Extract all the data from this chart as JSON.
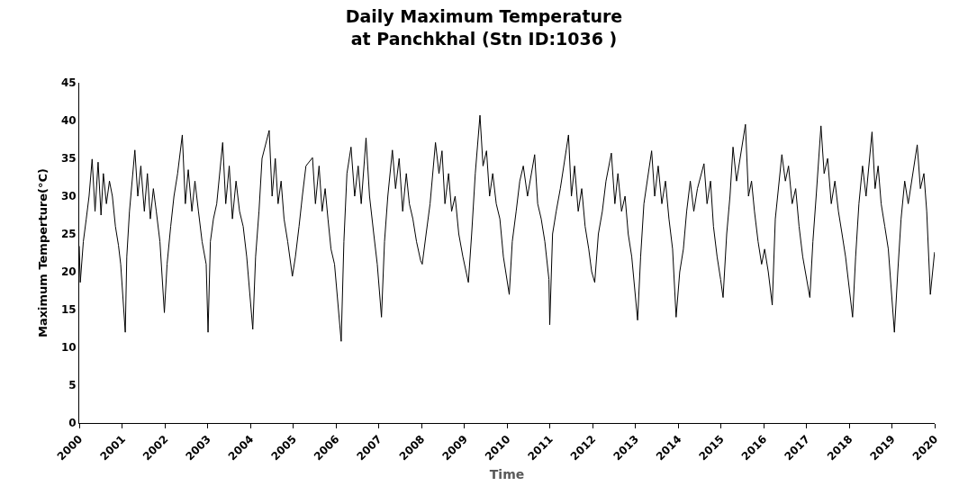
{
  "chart_data": {
    "type": "line",
    "title": "Daily Maximum Temperature\nat Panchkhal (Stn ID:1036 )",
    "xlabel": "Time",
    "ylabel": "Maximum Temperture(°C)",
    "xlim": [
      "2000-01-01",
      "2020-01-01"
    ],
    "xticks": [
      "2000",
      "2001",
      "2002",
      "2003",
      "2004",
      "2005",
      "2006",
      "2007",
      "2008",
      "2009",
      "2010",
      "2011",
      "2012",
      "2013",
      "2014",
      "2015",
      "2016",
      "2017",
      "2018",
      "2019",
      "2020"
    ],
    "ylim": [
      0,
      45
    ],
    "yticks": [
      0,
      5,
      10,
      15,
      20,
      25,
      30,
      35,
      40,
      45
    ],
    "marker": "none",
    "line_style": "solid",
    "series": [
      {
        "color": "#000000",
        "x": [
          "2000-01-01",
          "2000-01-10",
          "2000-02-05",
          "2000-03-01",
          "2000-03-25",
          "2000-04-20",
          "2000-05-15",
          "2000-06-10",
          "2000-07-05",
          "2000-07-25",
          "2000-08-20",
          "2000-09-15",
          "2000-10-10",
          "2000-11-05",
          "2000-12-01",
          "2000-12-20",
          "2001-01-28",
          "2001-02-10",
          "2001-03-05",
          "2001-04-20",
          "2001-05-15",
          "2001-06-10",
          "2001-07-10",
          "2001-08-05",
          "2001-08-30",
          "2001-09-25",
          "2001-10-20",
          "2001-11-20",
          "2001-12-28",
          "2002-01-20",
          "2002-02-20",
          "2002-03-20",
          "2002-04-20",
          "2002-05-30",
          "2002-06-25",
          "2002-07-20",
          "2002-08-20",
          "2002-09-15",
          "2002-10-15",
          "2002-11-15",
          "2002-12-20",
          "2003-01-05",
          "2003-01-25",
          "2003-02-20",
          "2003-03-20",
          "2003-05-10",
          "2003-06-05",
          "2003-07-05",
          "2003-08-01",
          "2003-09-01",
          "2003-10-01",
          "2003-11-01",
          "2003-12-01",
          "2004-01-22",
          "2004-02-15",
          "2004-03-15",
          "2004-04-10",
          "2004-06-10",
          "2004-07-05",
          "2004-08-01",
          "2004-08-25",
          "2004-09-20",
          "2004-10-15",
          "2004-11-15",
          "2004-12-25",
          "2005-01-20",
          "2005-02-20",
          "2005-03-20",
          "2005-04-20",
          "2005-06-15",
          "2005-07-10",
          "2005-08-10",
          "2005-09-05",
          "2005-10-01",
          "2005-10-25",
          "2005-11-20",
          "2005-12-20",
          "2006-02-15",
          "2006-03-10",
          "2006-04-05",
          "2006-05-10",
          "2006-06-10",
          "2006-07-10",
          "2006-08-05",
          "2006-09-15",
          "2006-10-15",
          "2006-11-20",
          "2006-12-20",
          "2007-01-25",
          "2007-02-20",
          "2007-03-20",
          "2007-04-28",
          "2007-05-25",
          "2007-06-25",
          "2007-07-25",
          "2007-08-25",
          "2007-09-20",
          "2007-10-20",
          "2007-11-20",
          "2007-12-25",
          "2008-01-08",
          "2008-02-10",
          "2008-03-15",
          "2008-04-30",
          "2008-05-30",
          "2008-06-25",
          "2008-07-20",
          "2008-08-20",
          "2008-09-15",
          "2008-10-15",
          "2008-11-15",
          "2008-12-20",
          "2009-02-05",
          "2009-03-05",
          "2009-04-05",
          "2009-05-15",
          "2009-06-10",
          "2009-07-10",
          "2009-08-05",
          "2009-09-01",
          "2009-10-01",
          "2009-11-01",
          "2009-12-01",
          "2010-01-20",
          "2010-02-15",
          "2010-03-20",
          "2010-04-20",
          "2010-05-20",
          "2010-06-25",
          "2010-08-25",
          "2010-09-20",
          "2010-10-20",
          "2010-11-20",
          "2010-12-25",
          "2011-01-01",
          "2011-01-25",
          "2011-02-25",
          "2011-04-01",
          "2011-06-10",
          "2011-07-05",
          "2011-08-01",
          "2011-09-01",
          "2011-10-01",
          "2011-10-30",
          "2011-11-30",
          "2011-12-25",
          "2012-01-20",
          "2012-02-20",
          "2012-03-25",
          "2012-04-25",
          "2012-06-10",
          "2012-07-10",
          "2012-08-05",
          "2012-09-05",
          "2012-10-05",
          "2012-11-01",
          "2012-12-01",
          "2013-01-20",
          "2013-02-15",
          "2013-03-15",
          "2013-05-20",
          "2013-06-15",
          "2013-07-15",
          "2013-08-15",
          "2013-09-15",
          "2013-10-15",
          "2013-11-15",
          "2013-12-15",
          "2014-01-15",
          "2014-02-15",
          "2014-03-15",
          "2014-04-15",
          "2014-05-15",
          "2014-06-15",
          "2014-08-10",
          "2014-09-05",
          "2014-10-05",
          "2014-10-30",
          "2014-11-30",
          "2014-12-30",
          "2015-01-20",
          "2015-02-20",
          "2015-03-20",
          "2015-04-15",
          "2015-05-15",
          "2015-07-30",
          "2015-08-25",
          "2015-09-20",
          "2015-10-15",
          "2015-11-15",
          "2015-12-15",
          "2016-01-10",
          "2016-02-10",
          "2016-03-15",
          "2016-04-10",
          "2016-06-05",
          "2016-07-05",
          "2016-08-01",
          "2016-09-01",
          "2016-10-01",
          "2016-10-30",
          "2016-11-30",
          "2017-01-30",
          "2017-02-25",
          "2017-03-25",
          "2017-05-05",
          "2017-06-01",
          "2017-07-01",
          "2017-08-01",
          "2017-09-01",
          "2017-10-01",
          "2017-11-01",
          "2017-12-01",
          "2018-01-30",
          "2018-02-25",
          "2018-03-25",
          "2018-04-25",
          "2018-05-25",
          "2018-07-15",
          "2018-08-10",
          "2018-09-05",
          "2018-10-01",
          "2018-11-01",
          "2018-12-01",
          "2019-01-22",
          "2019-02-20",
          "2019-03-20",
          "2019-04-20",
          "2019-05-20",
          "2019-08-05",
          "2019-09-01",
          "2019-10-01",
          "2019-10-25",
          "2019-11-25",
          "2019-12-31"
        ],
        "values": [
          23.4,
          18.6,
          24,
          27,
          30,
          34.9,
          28,
          34.5,
          27.5,
          33,
          29,
          32,
          30,
          26,
          23.5,
          21,
          12.0,
          22,
          28,
          36.1,
          30,
          34,
          28,
          33,
          27,
          31,
          28,
          24,
          14.6,
          21,
          26,
          30,
          33,
          38.1,
          29,
          33.5,
          28,
          32,
          28,
          24,
          21,
          12.0,
          24,
          27,
          29,
          37.1,
          29,
          34,
          27,
          32,
          28,
          26,
          22,
          12.4,
          22,
          28,
          35,
          38.7,
          30,
          35,
          29,
          32,
          27,
          24,
          19.4,
          22,
          26,
          30,
          34,
          35.1,
          29,
          34,
          28,
          31,
          27,
          23,
          21,
          10.8,
          24,
          33,
          36.5,
          30,
          34,
          29,
          37.7,
          30,
          25,
          21,
          14.0,
          24,
          30,
          36.1,
          31,
          35,
          28,
          33,
          29,
          27,
          24,
          21.5,
          21.0,
          25,
          29,
          37.1,
          33,
          36,
          29,
          33,
          28,
          30,
          25,
          22,
          18.6,
          25,
          33,
          40.7,
          34,
          36,
          30,
          33,
          29,
          27,
          22,
          17.0,
          24,
          28,
          32,
          34,
          30,
          35.5,
          29,
          27,
          24,
          19,
          13.0,
          25,
          28,
          31,
          38.1,
          30,
          34,
          28,
          31,
          26,
          23,
          20,
          18.6,
          25,
          28,
          32,
          35.7,
          29,
          33,
          28,
          30,
          25,
          22,
          13.6,
          22,
          29,
          36.0,
          30,
          34,
          29,
          32,
          27,
          23,
          14.0,
          20,
          23,
          28,
          32,
          28,
          31,
          34.3,
          29,
          32,
          26,
          22,
          19,
          16.6,
          25,
          30,
          36.5,
          32,
          39.5,
          30,
          32,
          28,
          24,
          21,
          23,
          20,
          15.6,
          27,
          35.5,
          32,
          34,
          29,
          31,
          26,
          22,
          16.6,
          24,
          30,
          39.3,
          33,
          35,
          29,
          32,
          28,
          25,
          22,
          14.0,
          22,
          29,
          34,
          30,
          38.5,
          31,
          34,
          29,
          26,
          23,
          12.0,
          20,
          27,
          32,
          29,
          36.8,
          31,
          33,
          28,
          17.0,
          22.6
        ]
      }
    ]
  }
}
